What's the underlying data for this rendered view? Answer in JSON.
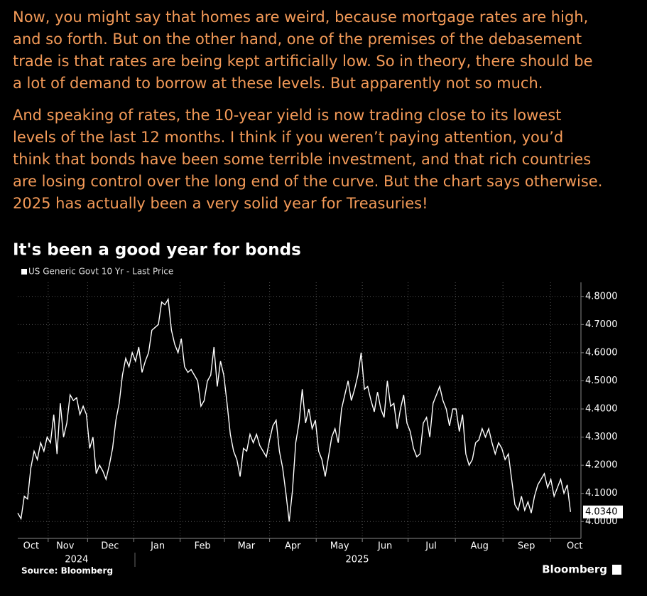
{
  "paragraphs": [
    [
      "Now, you might say that homes are weird, because mortgage rates are high,",
      "and so forth. But on the other hand, one of the premises of the debasement",
      "trade is that rates are being kept artificially low. So in theory, there should be",
      "a lot of demand to borrow at these levels. But apparently not so much."
    ],
    [
      "And speaking of rates, the 10-year yield is now trading close to its lowest",
      "levels of the last 12 months. I think if you weren’t paying attention, you’d",
      "think that bonds have been some terrible investment, and that rich countries",
      "are losing control over the long end of the curve. But the chart says otherwise.",
      "2025 has actually been a very solid year for Treasuries!"
    ]
  ],
  "chart_data": {
    "type": "line",
    "title": "It's been a good year for bonds",
    "source": "Source: Bloomberg",
    "brand": "Bloomberg",
    "series": [
      {
        "name": "US Generic Govt 10 Yr - Last Price",
        "color": "#ffffff",
        "values": [
          4.03,
          4.01,
          4.09,
          4.08,
          4.19,
          4.25,
          4.22,
          4.28,
          4.25,
          4.3,
          4.28,
          4.38,
          4.24,
          4.42,
          4.3,
          4.35,
          4.45,
          4.43,
          4.44,
          4.38,
          4.41,
          4.38,
          4.26,
          4.3,
          4.17,
          4.2,
          4.18,
          4.15,
          4.2,
          4.26,
          4.36,
          4.42,
          4.52,
          4.58,
          4.55,
          4.6,
          4.57,
          4.62,
          4.53,
          4.57,
          4.6,
          4.68,
          4.69,
          4.7,
          4.78,
          4.77,
          4.79,
          4.68,
          4.63,
          4.6,
          4.65,
          4.55,
          4.53,
          4.54,
          4.52,
          4.5,
          4.41,
          4.43,
          4.5,
          4.52,
          4.62,
          4.48,
          4.57,
          4.52,
          4.42,
          4.31,
          4.25,
          4.22,
          4.16,
          4.26,
          4.25,
          4.31,
          4.28,
          4.31,
          4.27,
          4.25,
          4.23,
          4.29,
          4.34,
          4.36,
          4.25,
          4.19,
          4.1,
          4.0,
          4.11,
          4.28,
          4.35,
          4.47,
          4.35,
          4.4,
          4.33,
          4.36,
          4.25,
          4.22,
          4.16,
          4.23,
          4.3,
          4.33,
          4.28,
          4.4,
          4.45,
          4.5,
          4.43,
          4.47,
          4.52,
          4.6,
          4.47,
          4.48,
          4.43,
          4.39,
          4.46,
          4.4,
          4.37,
          4.5,
          4.41,
          4.42,
          4.33,
          4.4,
          4.45,
          4.35,
          4.32,
          4.26,
          4.23,
          4.24,
          4.35,
          4.37,
          4.3,
          4.42,
          4.45,
          4.48,
          4.43,
          4.4,
          4.34,
          4.4,
          4.4,
          4.32,
          4.38,
          4.24,
          4.2,
          4.22,
          4.28,
          4.29,
          4.33,
          4.3,
          4.33,
          4.28,
          4.24,
          4.28,
          4.26,
          4.22,
          4.24,
          4.15,
          4.06,
          4.04,
          4.09,
          4.04,
          4.07,
          4.03,
          4.09,
          4.13,
          4.15,
          4.17,
          4.12,
          4.15,
          4.09,
          4.12,
          4.15,
          4.1,
          4.13,
          4.034
        ],
        "last_value_label": "4.0340"
      }
    ],
    "xlim": [
      0,
      172.2
    ],
    "xticks": [
      {
        "value": 4.1,
        "label": "Oct"
      },
      {
        "value": 14.5,
        "label": "Nov"
      },
      {
        "value": 28.2,
        "label": "Dec"
      },
      {
        "value": 42.8,
        "label": "Jan"
      },
      {
        "value": 56.5,
        "label": "Feb"
      },
      {
        "value": 69.9,
        "label": "Mar"
      },
      {
        "value": 84.1,
        "label": "Apr"
      },
      {
        "value": 98.4,
        "label": "May"
      },
      {
        "value": 112.3,
        "label": "Jun"
      },
      {
        "value": 126.4,
        "label": "Jul"
      },
      {
        "value": 141.2,
        "label": "Aug"
      },
      {
        "value": 155.5,
        "label": "Sep"
      },
      {
        "value": 170.3,
        "label": "Oct"
      }
    ],
    "year_labels": [
      {
        "value": 18.0,
        "label": "2024"
      },
      {
        "value": 103.8,
        "label": "2025"
      }
    ],
    "ylim": [
      3.94,
      4.85
    ],
    "yticks": [
      {
        "value": 4.0,
        "label": "4.0000"
      },
      {
        "value": 4.1,
        "label": "4.1000"
      },
      {
        "value": 4.2,
        "label": "4.2000"
      },
      {
        "value": 4.3,
        "label": "4.3000"
      },
      {
        "value": 4.4,
        "label": "4.4000"
      },
      {
        "value": 4.5,
        "label": "4.5000"
      },
      {
        "value": 4.6,
        "label": "4.6000"
      },
      {
        "value": 4.7,
        "label": "4.7000"
      },
      {
        "value": 4.8,
        "label": "4.8000"
      }
    ],
    "grid": true,
    "y_axis_side": "right"
  }
}
